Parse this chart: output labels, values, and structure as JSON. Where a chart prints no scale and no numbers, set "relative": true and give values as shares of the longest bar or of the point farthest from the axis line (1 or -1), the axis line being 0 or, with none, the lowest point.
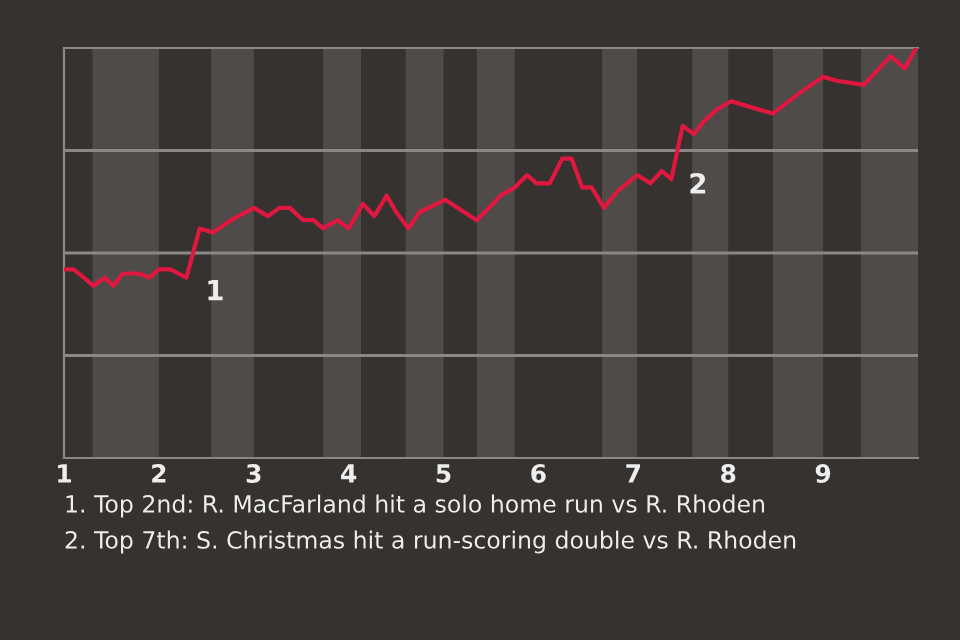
{
  "chart_data": {
    "type": "line",
    "relative": true,
    "tick_labels": "x",
    "legend": false,
    "grid": false,
    "marker": "none",
    "line_style": "solid",
    "x": [
      1.02,
      1.1,
      1.21,
      1.31,
      1.43,
      1.52,
      1.62,
      1.79,
      1.9,
      2.0,
      2.12,
      2.29,
      2.43,
      2.57,
      2.76,
      3.0,
      3.15,
      3.27,
      3.38,
      3.52,
      3.63,
      3.73,
      3.88,
      4.0,
      4.15,
      4.27,
      4.4,
      4.5,
      4.63,
      4.75,
      5.02,
      5.15,
      5.35,
      5.52,
      5.6,
      5.75,
      5.88,
      5.98,
      6.12,
      6.25,
      6.35,
      6.46,
      6.56,
      6.69,
      6.83,
      7.04,
      7.18,
      7.3,
      7.4,
      7.52,
      7.64,
      7.74,
      7.88,
      8.03,
      8.47,
      8.75,
      9.0,
      9.14,
      9.43,
      9.71,
      9.86,
      9.98
    ],
    "xlim": [
      1,
      10
    ],
    "xticks": [
      1,
      2,
      3,
      4,
      5,
      6,
      7,
      8,
      9
    ],
    "series": [
      {
        "color": "#e0173f",
        "values": [
          0.46,
          0.46,
          0.44,
          0.42,
          0.44,
          0.42,
          0.45,
          0.45,
          0.44,
          0.46,
          0.46,
          0.44,
          0.56,
          0.55,
          0.58,
          0.61,
          0.59,
          0.61,
          0.61,
          0.58,
          0.58,
          0.56,
          0.58,
          0.56,
          0.62,
          0.59,
          0.64,
          0.6,
          0.56,
          0.6,
          0.63,
          0.61,
          0.58,
          0.62,
          0.64,
          0.66,
          0.69,
          0.67,
          0.67,
          0.73,
          0.73,
          0.66,
          0.66,
          0.61,
          0.65,
          0.69,
          0.67,
          0.7,
          0.68,
          0.81,
          0.79,
          0.82,
          0.85,
          0.87,
          0.84,
          0.89,
          0.93,
          0.92,
          0.91,
          0.98,
          0.95,
          1.0
        ]
      }
    ],
    "ref_lines": [
      {
        "axis": "y",
        "value": 0.25,
        "color": "#8a8886"
      },
      {
        "axis": "y",
        "value": 0.5,
        "color": "#8a8886"
      },
      {
        "axis": "y",
        "value": 0.75,
        "color": "#8a8886"
      }
    ],
    "bands": [
      {
        "axis": "x",
        "from": 1.3,
        "to": 2.0,
        "color": "#4e4b49"
      },
      {
        "axis": "x",
        "from": 2.55,
        "to": 3.0,
        "color": "#4e4b49"
      },
      {
        "axis": "x",
        "from": 3.73,
        "to": 4.13,
        "color": "#4e4b49"
      },
      {
        "axis": "x",
        "from": 4.6,
        "to": 5.0,
        "color": "#4e4b49"
      },
      {
        "axis": "x",
        "from": 5.35,
        "to": 5.75,
        "color": "#4e4b49"
      },
      {
        "axis": "x",
        "from": 6.67,
        "to": 7.04,
        "color": "#4e4b49"
      },
      {
        "axis": "x",
        "from": 7.62,
        "to": 8.0,
        "color": "#4e4b49"
      },
      {
        "axis": "x",
        "from": 8.47,
        "to": 9.0,
        "color": "#4e4b49"
      },
      {
        "axis": "x",
        "from": 9.4,
        "to": 10,
        "color": "#4e4b49"
      }
    ],
    "annotations": [
      {
        "text": "1",
        "x": 2.43,
        "y": 0.45
      },
      {
        "text": "2",
        "x": 7.52,
        "y": 0.71
      },
      "1. Top 2nd: R. MacFarland hit a solo home run vs R. Rhoden",
      "2. Top 7th: S. Christmas hit a run-scoring double vs R. Rhoden"
    ]
  }
}
